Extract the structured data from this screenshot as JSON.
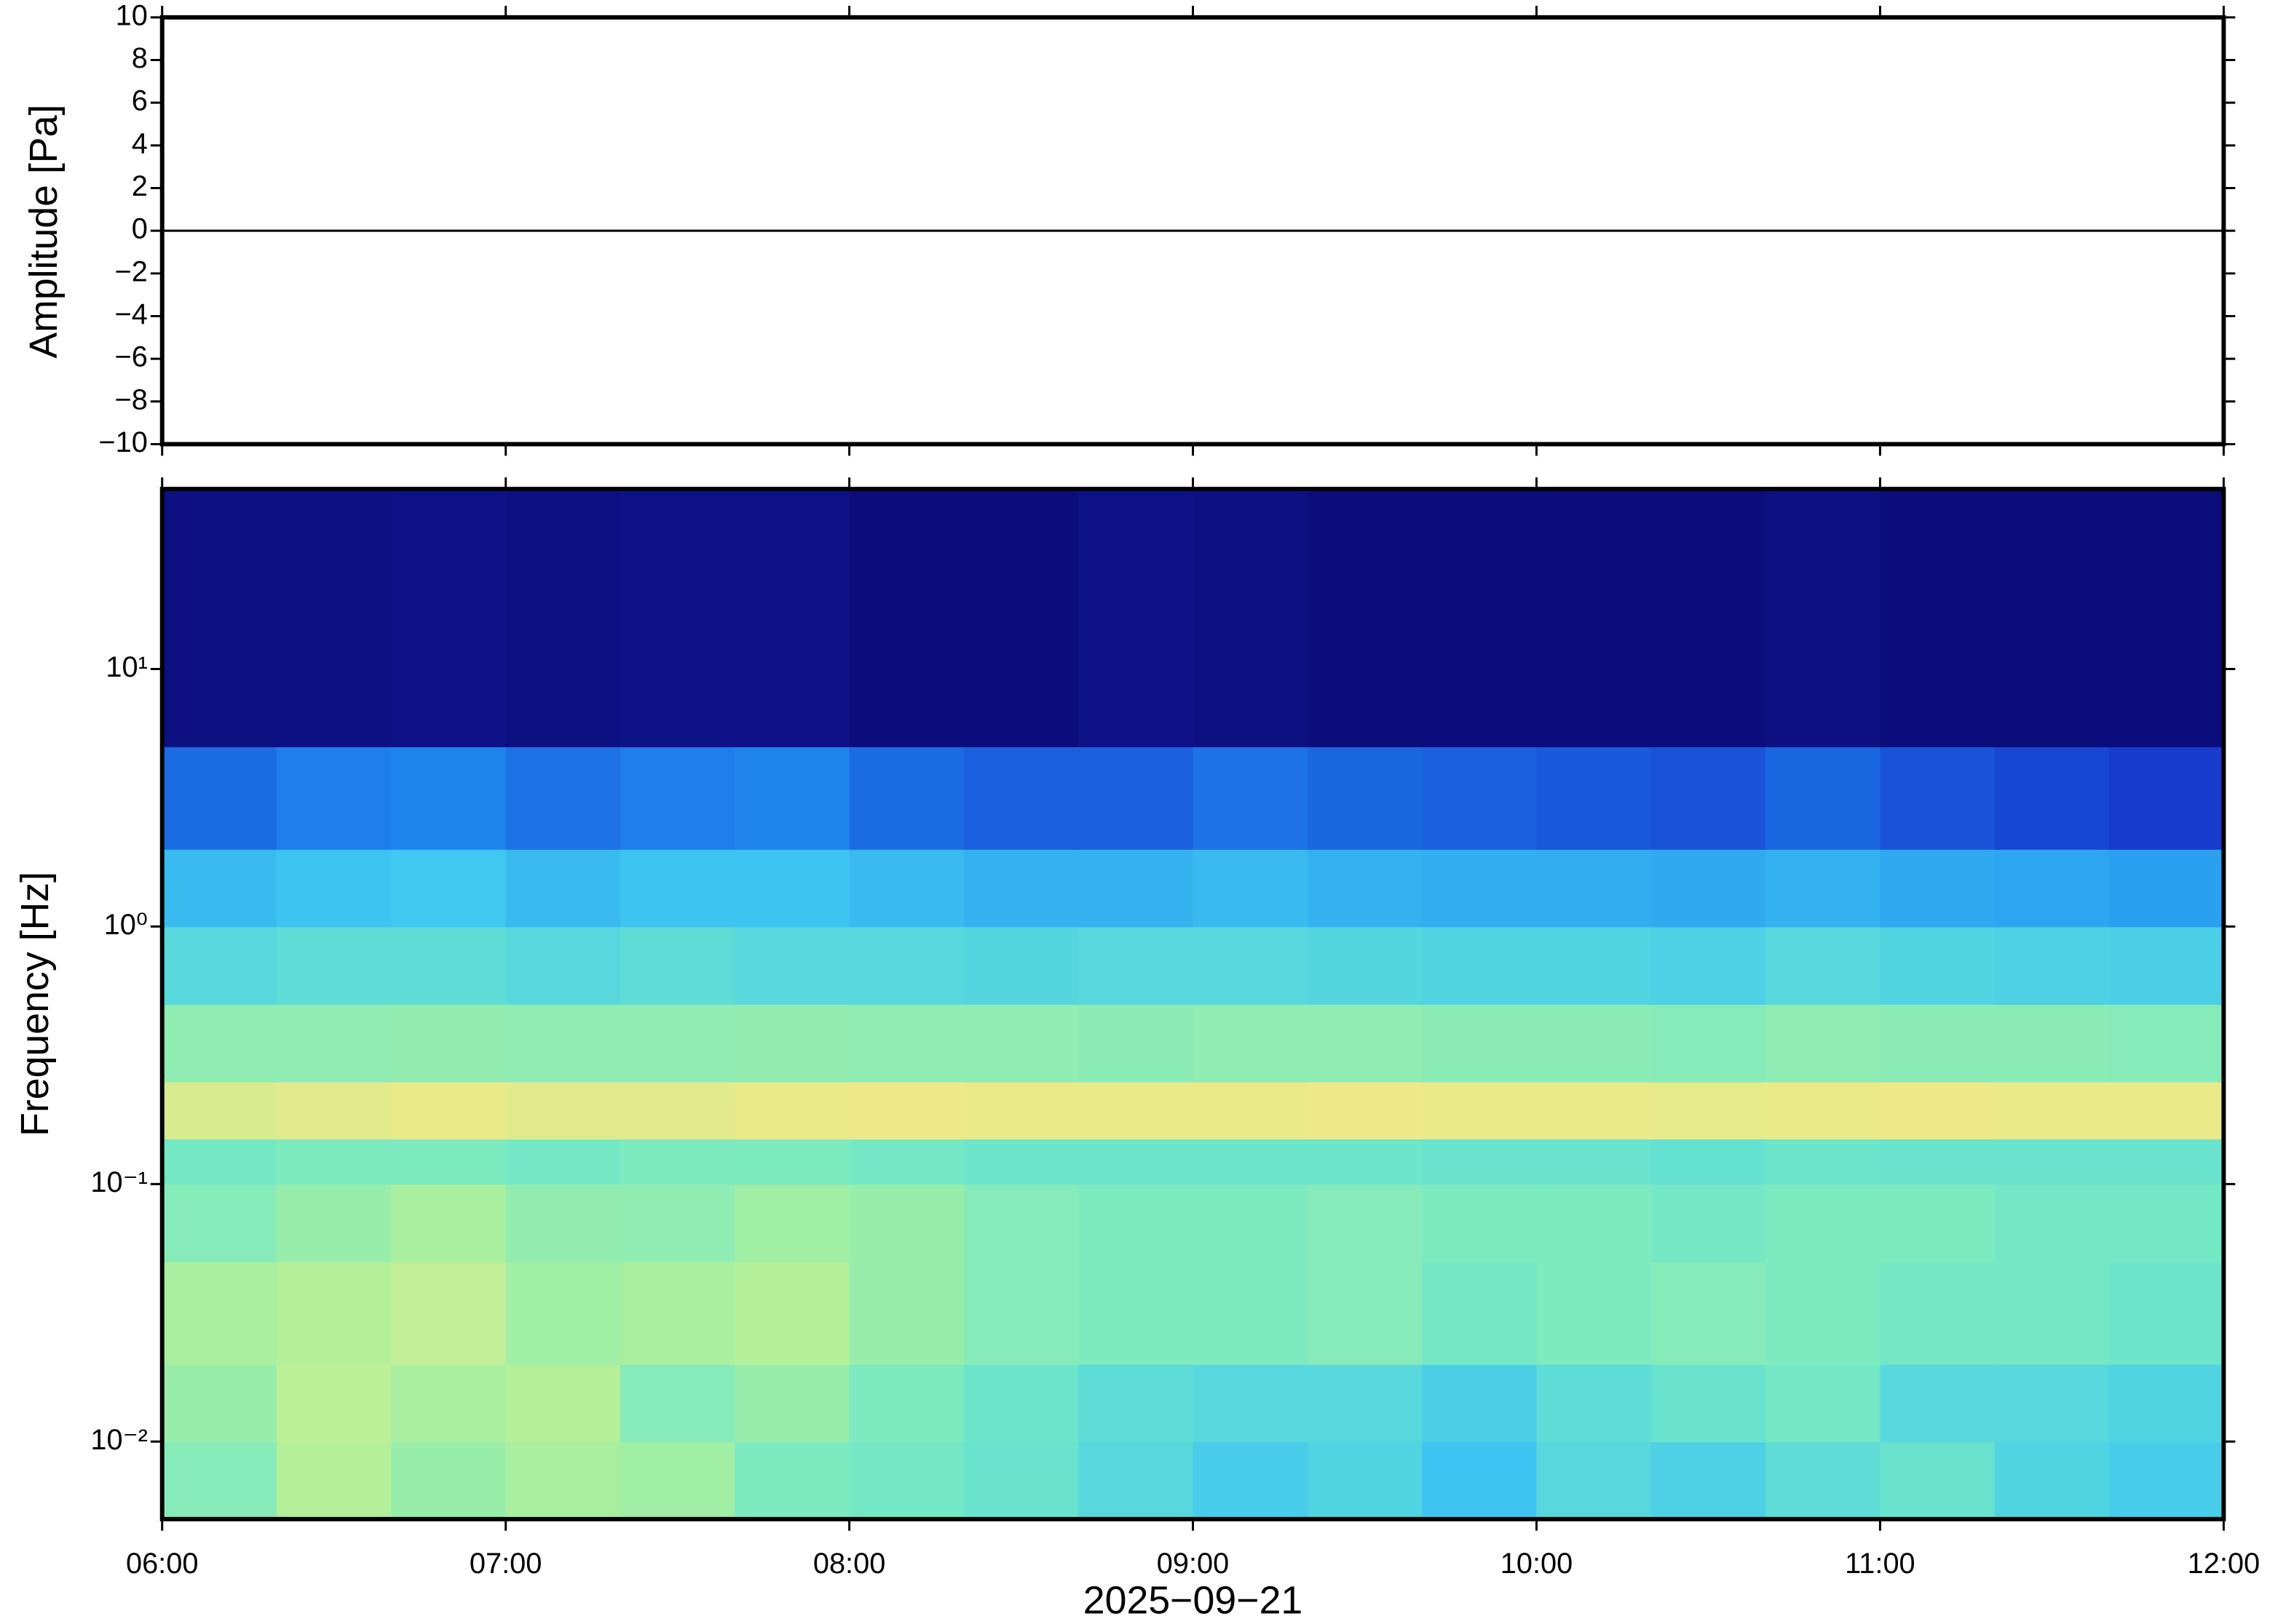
{
  "chart_data": [
    {
      "type": "line",
      "ylabel": "Amplitude [Pa]",
      "x": [
        "2025-09-21T06:00",
        "2025-09-21T06:30",
        "2025-09-21T07:00",
        "2025-09-21T07:30",
        "2025-09-21T08:00",
        "2025-09-21T08:30",
        "2025-09-21T09:00",
        "2025-09-21T09:30",
        "2025-09-21T10:00",
        "2025-09-21T10:30",
        "2025-09-21T11:00",
        "2025-09-21T11:30",
        "2025-09-21T12:00"
      ],
      "values": [
        0,
        0,
        0,
        0,
        0,
        0,
        0,
        0,
        0,
        0,
        0,
        0,
        0
      ],
      "color": "#000000",
      "xlim": [
        "2025-09-21T06:00",
        "2025-09-21T12:00"
      ],
      "ylim": [
        -10,
        10
      ],
      "yticks": [
        {
          "value": -10,
          "label": "−10"
        },
        {
          "value": -8,
          "label": "−8"
        },
        {
          "value": -6,
          "label": "−6"
        },
        {
          "value": -4,
          "label": "−4"
        },
        {
          "value": -2,
          "label": "−2"
        },
        0,
        2,
        4,
        6,
        8,
        10
      ]
    },
    {
      "type": "heatmap",
      "ylabel": "Frequency [Hz]",
      "xlabel": "2025−09−21",
      "log_y": true,
      "xlim": [
        "2025-09-21T06:00",
        "2025-09-21T12:00"
      ],
      "xticks": [
        {
          "value": "2025-09-21T06:00",
          "label": "06:00"
        },
        {
          "value": "2025-09-21T07:00",
          "label": "07:00"
        },
        {
          "value": "2025-09-21T08:00",
          "label": "08:00"
        },
        {
          "value": "2025-09-21T09:00",
          "label": "09:00"
        },
        {
          "value": "2025-09-21T10:00",
          "label": "10:00"
        },
        {
          "value": "2025-09-21T11:00",
          "label": "11:00"
        },
        {
          "value": "2025-09-21T12:00",
          "label": "12:00"
        }
      ],
      "ylim": [
        0.005,
        50
      ],
      "yticks": [
        {
          "value": 0.01,
          "label": "10⁻²"
        },
        {
          "value": 0.1,
          "label": "10⁻¹"
        },
        {
          "value": 1,
          "label": "10⁰"
        },
        {
          "value": 10,
          "label": "10¹"
        }
      ],
      "xbins": [
        "2025-09-21T06:00",
        "2025-09-21T06:20",
        "2025-09-21T06:40",
        "2025-09-21T07:00",
        "2025-09-21T07:20",
        "2025-09-21T07:40",
        "2025-09-21T08:00",
        "2025-09-21T08:20",
        "2025-09-21T08:40",
        "2025-09-21T09:00",
        "2025-09-21T09:20",
        "2025-09-21T09:40",
        "2025-09-21T10:00",
        "2025-09-21T10:20",
        "2025-09-21T10:40",
        "2025-09-21T11:00",
        "2025-09-21T11:20",
        "2025-09-21T11:40",
        "2025-09-21T12:00"
      ],
      "ybins": [
        0.005,
        0.01,
        0.02,
        0.05,
        0.1,
        0.15,
        0.25,
        0.5,
        1,
        2,
        5,
        50
      ],
      "zlim": [
        0,
        1
      ],
      "colormap": [
        "#0b0770",
        "#1530c8",
        "#1e88f0",
        "#40c8f0",
        "#70e8c8",
        "#b0f09a",
        "#f2e888",
        "#f5b070"
      ],
      "z": [
        [
          0.62,
          0.72,
          0.66,
          0.7,
          0.68,
          0.6,
          0.58,
          0.55,
          0.5,
          0.45,
          0.48,
          0.42,
          0.5,
          0.47,
          0.52,
          0.55,
          0.48,
          0.45
        ],
        [
          0.66,
          0.74,
          0.7,
          0.72,
          0.62,
          0.66,
          0.6,
          0.56,
          0.52,
          0.5,
          0.5,
          0.46,
          0.52,
          0.55,
          0.58,
          0.5,
          0.5,
          0.48
        ],
        [
          0.7,
          0.72,
          0.75,
          0.68,
          0.7,
          0.72,
          0.66,
          0.62,
          0.6,
          0.6,
          0.62,
          0.58,
          0.6,
          0.62,
          0.6,
          0.58,
          0.58,
          0.56
        ],
        [
          0.62,
          0.66,
          0.7,
          0.65,
          0.64,
          0.68,
          0.66,
          0.62,
          0.6,
          0.6,
          0.62,
          0.6,
          0.6,
          0.58,
          0.6,
          0.6,
          0.58,
          0.58
        ],
        [
          0.58,
          0.6,
          0.6,
          0.58,
          0.6,
          0.6,
          0.58,
          0.56,
          0.56,
          0.56,
          0.56,
          0.55,
          0.55,
          0.54,
          0.56,
          0.55,
          0.55,
          0.55
        ],
        [
          0.8,
          0.82,
          0.84,
          0.82,
          0.82,
          0.84,
          0.85,
          0.84,
          0.84,
          0.84,
          0.85,
          0.84,
          0.84,
          0.83,
          0.84,
          0.85,
          0.84,
          0.84
        ],
        [
          0.64,
          0.64,
          0.65,
          0.64,
          0.64,
          0.65,
          0.64,
          0.64,
          0.63,
          0.64,
          0.64,
          0.63,
          0.63,
          0.62,
          0.64,
          0.63,
          0.63,
          0.62
        ],
        [
          0.5,
          0.52,
          0.52,
          0.5,
          0.52,
          0.5,
          0.5,
          0.49,
          0.5,
          0.5,
          0.49,
          0.48,
          0.48,
          0.47,
          0.5,
          0.48,
          0.47,
          0.46
        ],
        [
          0.4,
          0.42,
          0.43,
          0.4,
          0.42,
          0.42,
          0.4,
          0.38,
          0.38,
          0.4,
          0.38,
          0.37,
          0.37,
          0.36,
          0.38,
          0.36,
          0.35,
          0.34
        ],
        [
          0.24,
          0.27,
          0.28,
          0.25,
          0.27,
          0.28,
          0.24,
          0.22,
          0.22,
          0.25,
          0.23,
          0.22,
          0.21,
          0.2,
          0.23,
          0.2,
          0.18,
          0.16
        ],
        [
          0.03,
          0.03,
          0.04,
          0.03,
          0.04,
          0.04,
          0.02,
          0.02,
          0.04,
          0.03,
          0.02,
          0.02,
          0.02,
          0.02,
          0.03,
          0.02,
          0.02,
          0.02
        ]
      ]
    }
  ]
}
